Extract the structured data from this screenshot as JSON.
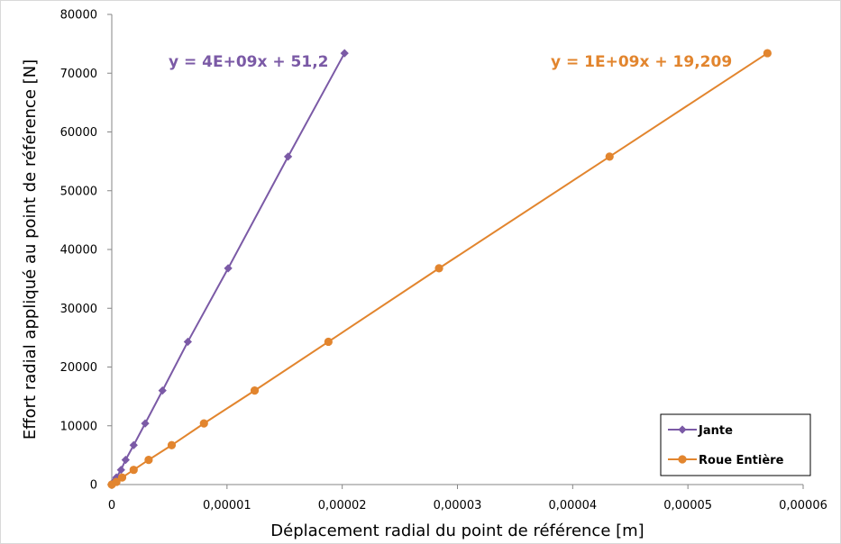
{
  "chart_data": {
    "type": "scatter",
    "xlabel": "Déplacement radial du point de référence [m]",
    "ylabel": "Effort radial appliqué au point de référence [N]",
    "xlim": [
      0,
      6e-05
    ],
    "ylim": [
      0,
      80000
    ],
    "x_ticks": [
      0,
      1e-05,
      2e-05,
      3e-05,
      4e-05,
      5e-05,
      6e-05
    ],
    "x_tick_labels": [
      "0",
      "0,00001",
      "0,00002",
      "0,00003",
      "0,00004",
      "0,00005",
      "0,00006"
    ],
    "y_ticks": [
      0,
      10000,
      20000,
      30000,
      40000,
      50000,
      60000,
      70000,
      80000
    ],
    "y_tick_labels": [
      "0",
      "10000",
      "20000",
      "30000",
      "40000",
      "50000",
      "60000",
      "70000",
      "80000"
    ],
    "grid": false,
    "legend_position": "bottom-right",
    "series": [
      {
        "name": "Jante",
        "color": "#7b5aa6",
        "marker": "diamond",
        "equation": "y = 4E+09x + 51,2",
        "points": [
          [
            0,
            0
          ],
          [
            1.5e-07,
            450
          ],
          [
            4e-07,
            1200
          ],
          [
            8e-07,
            2500
          ],
          [
            1.2e-06,
            4200
          ],
          [
            1.9e-06,
            6700
          ],
          [
            2.9e-06,
            10400
          ],
          [
            4.4e-06,
            16000
          ],
          [
            6.6e-06,
            24300
          ],
          [
            1.01e-05,
            36800
          ],
          [
            1.53e-05,
            55800
          ],
          [
            2.02e-05,
            73400
          ]
        ]
      },
      {
        "name": "Roue Entière",
        "color": "#e2852e",
        "marker": "circle",
        "equation": "y = 1E+09x + 19,209",
        "points": [
          [
            0,
            0
          ],
          [
            4e-07,
            450
          ],
          [
            9e-07,
            1200
          ],
          [
            1.9e-06,
            2500
          ],
          [
            3.2e-06,
            4200
          ],
          [
            5.2e-06,
            6700
          ],
          [
            8e-06,
            10400
          ],
          [
            1.24e-05,
            16000
          ],
          [
            1.88e-05,
            24300
          ],
          [
            2.84e-05,
            36800
          ],
          [
            4.32e-05,
            55800
          ],
          [
            5.69e-05,
            73400
          ]
        ]
      }
    ]
  }
}
